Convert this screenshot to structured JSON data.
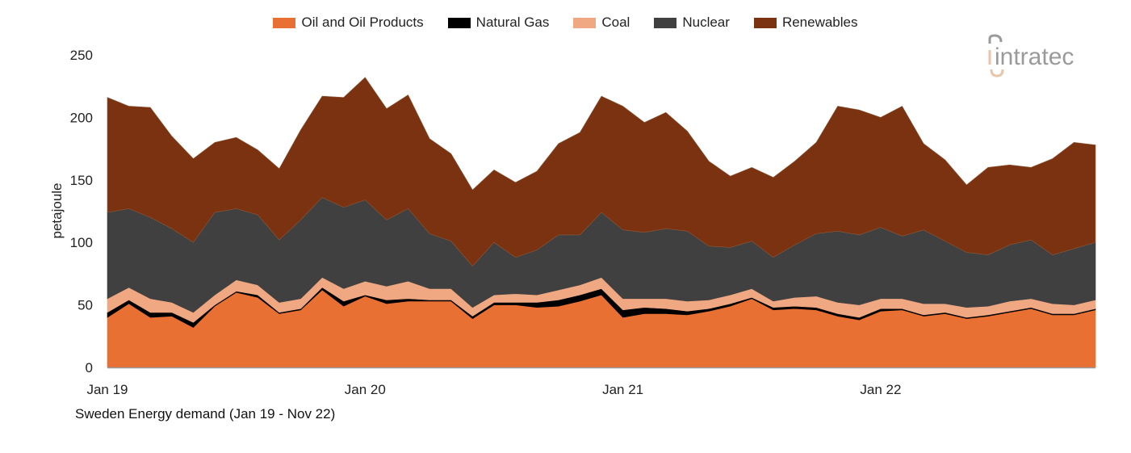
{
  "chart_data": {
    "type": "area",
    "stacked": true,
    "title": "",
    "caption": "Sweden Energy demand (Jan 19 - Nov 22)",
    "ylabel": "petajoule",
    "xlabel": "",
    "ylim": [
      0,
      250
    ],
    "yticks": [
      0,
      50,
      100,
      150,
      200,
      250
    ],
    "xtick_labels": [
      "Jan 19",
      "Jan 20",
      "Jan 21",
      "Jan 22"
    ],
    "x_start": "2019-01",
    "x_end": "2022-11",
    "grid": false,
    "legend_position": "top",
    "series": [
      {
        "name": "Oil and Oil Products",
        "color": "#E87033",
        "values": [
          40,
          51,
          40,
          41,
          32,
          49,
          60,
          56,
          43,
          46,
          62,
          49,
          57,
          51,
          53,
          53,
          53,
          39,
          50,
          50,
          48,
          49,
          53,
          58,
          40,
          43,
          43,
          42,
          45,
          49,
          55,
          46,
          47,
          46,
          41,
          38,
          45,
          46,
          41,
          43,
          39,
          41,
          44,
          47,
          42,
          42,
          46
        ]
      },
      {
        "name": "Natural Gas",
        "color": "#000000",
        "values": [
          4,
          3,
          4,
          3,
          4,
          1,
          1,
          2,
          1,
          1,
          2,
          4,
          1,
          3,
          2,
          1,
          1,
          2,
          2,
          2,
          4,
          5,
          5,
          5,
          6,
          5,
          4,
          3,
          2,
          2,
          1,
          2,
          2,
          2,
          2,
          2,
          2,
          1,
          1,
          1,
          1,
          1,
          1,
          1,
          1,
          1,
          1
        ]
      },
      {
        "name": "Coal",
        "color": "#F0A882",
        "values": [
          11,
          10,
          11,
          8,
          8,
          8,
          9,
          8,
          8,
          8,
          8,
          10,
          11,
          11,
          14,
          9,
          9,
          7,
          6,
          7,
          6,
          8,
          8,
          9,
          9,
          7,
          8,
          8,
          7,
          7,
          7,
          5,
          7,
          9,
          9,
          10,
          8,
          8,
          9,
          7,
          8,
          7,
          8,
          7,
          8,
          7,
          7
        ]
      },
      {
        "name": "Nuclear",
        "color": "#404040",
        "values": [
          69,
          63,
          65,
          59,
          56,
          66,
          57,
          56,
          50,
          63,
          64,
          65,
          65,
          53,
          58,
          44,
          38,
          33,
          42,
          29,
          36,
          44,
          40,
          52,
          55,
          53,
          56,
          56,
          43,
          38,
          38,
          35,
          42,
          50,
          57,
          56,
          57,
          50,
          59,
          50,
          44,
          41,
          45,
          47,
          39,
          45,
          46
        ]
      },
      {
        "name": "Renewables",
        "color": "#7B3210",
        "values": [
          92,
          82,
          88,
          74,
          67,
          56,
          57,
          52,
          57,
          72,
          81,
          88,
          98,
          89,
          91,
          76,
          70,
          61,
          58,
          60,
          63,
          73,
          82,
          93,
          99,
          88,
          93,
          80,
          68,
          57,
          59,
          64,
          67,
          73,
          100,
          100,
          88,
          104,
          69,
          65,
          54,
          70,
          64,
          58,
          77,
          85,
          78
        ]
      }
    ]
  },
  "logo": {
    "text": "intratec",
    "color": "#9a9a9a",
    "accent": "#E8C4A8"
  }
}
